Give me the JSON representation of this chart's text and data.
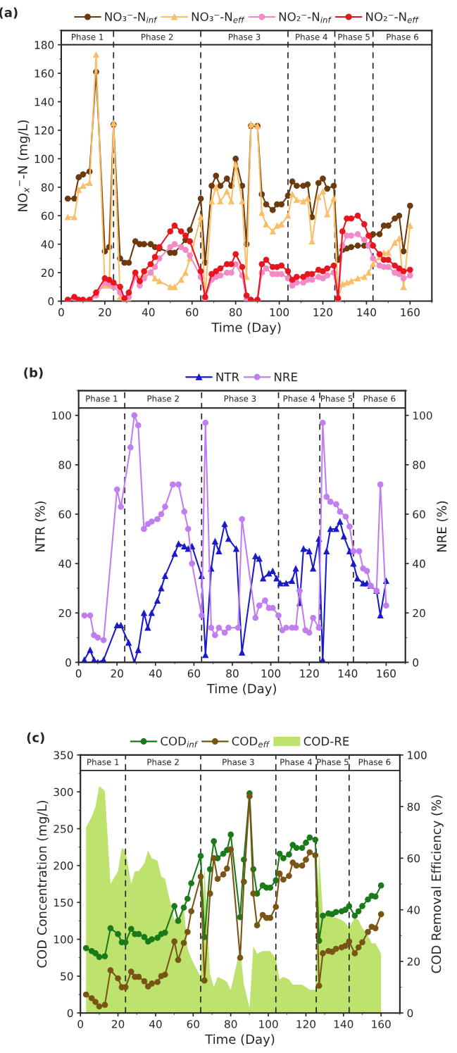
{
  "chart_data": [
    {
      "type": "line",
      "xlabel": "Time (Day)",
      "ylabel": "NO$_{x}$$^{−}$-N (mg/L)",
      "annotations": [
        "(a)",
        "Phase 1",
        "Phase 2",
        "Phase 3",
        "Phase 4",
        "Phase 5",
        "Phase 6"
      ],
      "xlim": [
        0,
        170
      ],
      "ylim": [
        0,
        190
      ],
      "xticks": [
        0,
        20,
        40,
        60,
        80,
        100,
        120,
        140,
        160
      ],
      "yticks": [
        0,
        20,
        40,
        60,
        80,
        100,
        120,
        140,
        160,
        180
      ],
      "legend": "top",
      "ref_lines": [
        {
          "axis": "y",
          "value": 180,
          "line_style": "solid"
        },
        {
          "axis": "x",
          "value": 24,
          "line_style": "dashed"
        },
        {
          "axis": "x",
          "value": 64,
          "line_style": "dashed"
        },
        {
          "axis": "x",
          "value": 104,
          "line_style": "dashed"
        },
        {
          "axis": "x",
          "value": 125.5,
          "line_style": "dashed"
        },
        {
          "axis": "x",
          "value": 143,
          "line_style": "dashed"
        }
      ],
      "series": [
        {
          "name": "NO₃⁻-N$_{inf}$",
          "color": "#6b3a0e",
          "marker": "circle",
          "x": [
            3,
            6,
            8,
            10,
            13,
            16,
            20,
            22,
            24,
            27,
            29,
            31,
            34,
            36,
            38,
            41,
            43,
            45,
            50,
            52,
            57,
            59,
            64,
            66,
            69,
            71,
            73,
            76,
            78,
            80,
            83,
            85,
            87,
            90,
            92,
            94,
            97,
            99,
            101,
            104,
            106,
            108,
            111,
            113,
            115,
            118,
            120,
            122,
            125,
            127,
            129,
            131,
            133,
            136,
            139,
            141,
            143,
            146,
            148,
            150,
            153,
            155,
            157,
            160
          ],
          "values": [
            72,
            72,
            87,
            89,
            91,
            161,
            35,
            38,
            124,
            30,
            27,
            27,
            42,
            40,
            40,
            40,
            38,
            37,
            34,
            34,
            43,
            50,
            72,
            27,
            81,
            88,
            81,
            86,
            81,
            100,
            81,
            40,
            123,
            123,
            75,
            68,
            64,
            68,
            68,
            74,
            84,
            81,
            81,
            82,
            59,
            83,
            86,
            79,
            81,
            29,
            36,
            37,
            38,
            39,
            39,
            39,
            47,
            47,
            53,
            53,
            58,
            60,
            35,
            67
          ]
        },
        {
          "name": "NO₃⁻-N$_{eff}$",
          "color": "#f9bf68",
          "marker": "triangle",
          "x": [
            3,
            6,
            8,
            10,
            13,
            16,
            20,
            22,
            24,
            27,
            29,
            31,
            34,
            36,
            38,
            41,
            43,
            45,
            50,
            52,
            55,
            57,
            59,
            64,
            66,
            69,
            71,
            73,
            76,
            78,
            80,
            83,
            85,
            87,
            90,
            92,
            94,
            97,
            99,
            101,
            104,
            106,
            108,
            111,
            113,
            115,
            118,
            120,
            122,
            125,
            127,
            129,
            131,
            133,
            136,
            139,
            141,
            143,
            146,
            148,
            150,
            153,
            155,
            157,
            160
          ],
          "values": [
            59,
            59,
            78,
            81,
            83,
            173,
            11,
            11,
            125,
            3,
            1,
            1,
            20,
            16,
            19,
            21,
            16,
            14,
            10,
            10,
            15,
            20,
            30,
            59,
            3,
            70,
            80,
            70,
            77,
            70,
            96,
            70,
            17,
            124,
            123,
            62,
            54,
            49,
            53,
            54,
            60,
            75,
            71,
            70,
            72,
            42,
            73,
            77,
            61,
            72,
            2,
            12,
            13,
            14,
            16,
            17,
            20,
            26,
            31,
            34,
            34,
            41,
            44,
            10,
            53
          ]
        },
        {
          "name": "NO₂⁻-N$_{inf}$",
          "color": "#f28ac6",
          "marker": "circle",
          "x": [
            3,
            6,
            8,
            10,
            13,
            16,
            20,
            22,
            24,
            27,
            29,
            31,
            34,
            36,
            38,
            41,
            43,
            45,
            50,
            52,
            55,
            57,
            59,
            64,
            66,
            69,
            71,
            73,
            76,
            78,
            80,
            83,
            85,
            87,
            90,
            92,
            94,
            97,
            99,
            101,
            104,
            106,
            108,
            111,
            113,
            115,
            118,
            120,
            122,
            125,
            127,
            129,
            131,
            133,
            136,
            139,
            141,
            143,
            146,
            148,
            150,
            153,
            155,
            157,
            160
          ],
          "values": [
            0,
            2,
            0,
            0,
            0,
            4,
            13,
            12,
            10,
            6,
            0,
            3,
            17,
            11,
            16,
            20,
            24,
            30,
            38,
            40,
            38,
            36,
            32,
            17,
            2,
            15,
            17,
            18,
            20,
            20,
            26,
            18,
            1,
            0,
            0,
            20,
            23,
            19,
            19,
            19,
            16,
            11,
            13,
            13,
            15,
            15,
            17,
            16,
            18,
            20,
            0,
            39,
            46,
            46,
            47,
            43,
            39,
            30,
            25,
            24,
            24,
            20,
            19,
            16,
            18
          ]
        },
        {
          "name": "NO₂⁻-N$_{eff}$",
          "color": "#e8141e",
          "marker": "circle",
          "x": [
            3,
            6,
            8,
            10,
            13,
            16,
            20,
            22,
            24,
            27,
            29,
            31,
            34,
            36,
            38,
            41,
            43,
            45,
            50,
            52,
            55,
            57,
            59,
            64,
            66,
            69,
            71,
            73,
            76,
            78,
            80,
            83,
            85,
            87,
            90,
            92,
            94,
            97,
            99,
            101,
            104,
            106,
            108,
            111,
            113,
            115,
            118,
            120,
            122,
            125,
            127,
            129,
            131,
            133,
            136,
            139,
            141,
            143,
            146,
            148,
            150,
            153,
            155,
            157,
            160
          ],
          "values": [
            1,
            3,
            1,
            1,
            1,
            6,
            16,
            15,
            13,
            10,
            2,
            6,
            20,
            14,
            21,
            26,
            31,
            38,
            49,
            53,
            49,
            46,
            42,
            21,
            3,
            19,
            21,
            23,
            26,
            26,
            33,
            24,
            4,
            1,
            1,
            26,
            29,
            24,
            24,
            25,
            21,
            15,
            17,
            17,
            19,
            19,
            22,
            21,
            23,
            25,
            2,
            49,
            58,
            58,
            60,
            54,
            46,
            39,
            33,
            29,
            29,
            25,
            23,
            21,
            22
          ]
        }
      ]
    },
    {
      "type": "line",
      "xlabel": "Time (Day)",
      "ylabel": "NTR (%)",
      "y2label": "NRE (%)",
      "annotations": [
        "(b)",
        "Phase 1",
        "Phase 2",
        "Phase 3",
        "Phase 4",
        "Phase 5",
        "Phase 6"
      ],
      "xlim": [
        0,
        170
      ],
      "ylim": [
        0,
        110
      ],
      "y2lim": [
        0,
        110
      ],
      "xticks": [
        0,
        20,
        40,
        60,
        80,
        100,
        120,
        140,
        160
      ],
      "yticks": [
        0,
        20,
        40,
        60,
        80,
        100
      ],
      "y2ticks": [
        0,
        20,
        40,
        60,
        80,
        100
      ],
      "legend": "top",
      "ref_lines": [
        {
          "axis": "y",
          "value": 103,
          "line_style": "solid"
        },
        {
          "axis": "x",
          "value": 24,
          "line_style": "dashed"
        },
        {
          "axis": "x",
          "value": 64,
          "line_style": "dashed"
        },
        {
          "axis": "x",
          "value": 104,
          "line_style": "dashed"
        },
        {
          "axis": "x",
          "value": 125.5,
          "line_style": "dashed"
        },
        {
          "axis": "x",
          "value": 143,
          "line_style": "dashed"
        }
      ],
      "series": [
        {
          "name": "NTR",
          "color": "#1a1acb",
          "marker": "triangle",
          "x": [
            3,
            6,
            8,
            10,
            13,
            20,
            22,
            26,
            29,
            31,
            34,
            36,
            38,
            41,
            43,
            45,
            50,
            52,
            55,
            57,
            59,
            64,
            66,
            69,
            71,
            73,
            76,
            78,
            82,
            85,
            92,
            94,
            96,
            99,
            101,
            103,
            105,
            108,
            111,
            113,
            115,
            117,
            120,
            122,
            125,
            127,
            129,
            131,
            134,
            136,
            138,
            141,
            143,
            145,
            148,
            150,
            152,
            155,
            157,
            160
          ],
          "values": [
            1,
            5,
            1,
            0,
            1,
            15,
            15,
            8,
            0,
            5,
            20,
            14,
            20,
            25,
            30,
            35,
            44,
            48,
            47,
            46,
            47,
            35,
            3,
            38,
            49,
            45,
            56,
            50,
            46,
            4,
            43,
            42,
            34,
            36,
            37,
            34,
            32,
            32,
            33,
            38,
            24,
            46,
            45,
            38,
            50,
            1,
            45,
            54,
            54,
            57,
            51,
            45,
            40,
            34,
            32,
            32,
            31,
            29,
            19,
            33
          ]
        },
        {
          "name": "NRE",
          "color": "#c07ef0",
          "marker": "circle",
          "axis": "y2",
          "x": [
            3,
            6,
            8,
            10,
            13,
            20,
            22,
            27,
            29,
            31,
            34,
            36,
            38,
            41,
            43,
            45,
            49,
            52,
            55,
            57,
            59,
            64,
            66,
            69,
            71,
            73,
            76,
            78,
            83,
            85,
            92,
            94,
            97,
            99,
            101,
            104,
            106,
            108,
            111,
            113,
            115,
            118,
            120,
            122,
            125,
            127,
            129,
            131,
            134,
            136,
            139,
            141,
            143,
            146,
            148,
            150,
            152,
            155,
            157,
            160
          ],
          "values": [
            19,
            19,
            11,
            10,
            9,
            70,
            63,
            87,
            100,
            96,
            54,
            56,
            57,
            58,
            60,
            63,
            72,
            72,
            61,
            54,
            40,
            19,
            97,
            14,
            11,
            14,
            12,
            14,
            14,
            58,
            18,
            23,
            25,
            22,
            22,
            19,
            13,
            14,
            14,
            14,
            29,
            13,
            12,
            18,
            14,
            97,
            67,
            65,
            64,
            61,
            59,
            55,
            45,
            45,
            38,
            37,
            31,
            29,
            72,
            23
          ]
        }
      ]
    },
    {
      "type": "line",
      "xlabel": "Time (Day)",
      "ylabel": "COD Concentration (mg/L)",
      "y2label": "COD Removal Efficiency (%)",
      "annotations": [
        "(c)",
        "Phase 1",
        "Phase 2",
        "Phase 3",
        "Phase 4",
        "Phase 5",
        "Phase 6"
      ],
      "xlim": [
        0,
        170
      ],
      "ylim": [
        0,
        350
      ],
      "y2lim": [
        0,
        100
      ],
      "xticks": [
        0,
        20,
        40,
        60,
        80,
        100,
        120,
        140,
        160
      ],
      "yticks": [
        0,
        50,
        100,
        150,
        200,
        250,
        300,
        350
      ],
      "y2ticks": [
        0,
        20,
        40,
        60,
        80,
        100
      ],
      "legend": "top",
      "ref_lines": [
        {
          "axis": "y",
          "value": 329,
          "line_style": "solid"
        },
        {
          "axis": "x",
          "value": 24,
          "line_style": "dashed"
        },
        {
          "axis": "x",
          "value": 64,
          "line_style": "dashed"
        },
        {
          "axis": "x",
          "value": 104,
          "line_style": "dashed"
        },
        {
          "axis": "x",
          "value": 125.5,
          "line_style": "dashed"
        },
        {
          "axis": "x",
          "value": 143,
          "line_style": "dashed"
        }
      ],
      "series": [
        {
          "name": "COD$_{inf}$",
          "color": "#1a7a1a",
          "marker": "circle",
          "x": [
            3,
            6,
            8,
            10,
            13,
            16,
            20,
            22,
            24,
            27,
            29,
            31,
            34,
            36,
            38,
            41,
            43,
            45,
            50,
            52,
            55,
            57,
            59,
            64,
            66,
            69,
            71,
            73,
            76,
            78,
            80,
            85,
            87,
            90,
            92,
            94,
            97,
            99,
            101,
            104,
            106,
            108,
            111,
            113,
            115,
            118,
            120,
            122,
            125,
            127,
            129,
            132,
            134,
            136,
            139,
            141,
            143,
            146,
            148,
            150,
            153,
            155,
            157,
            160
          ],
          "values": [
            88,
            84,
            81,
            76,
            77,
            115,
            107,
            96,
            96,
            114,
            107,
            107,
            103,
            97,
            100,
            102,
            107,
            109,
            145,
            125,
            143,
            155,
            176,
            213,
            103,
            195,
            233,
            210,
            216,
            221,
            242,
            130,
            208,
            298,
            195,
            162,
            173,
            170,
            170,
            180,
            216,
            210,
            215,
            228,
            224,
            224,
            231,
            238,
            235,
            98,
            132,
            135,
            134,
            137,
            138,
            140,
            145,
            132,
            138,
            145,
            154,
            159,
            158,
            173
          ]
        },
        {
          "name": "COD$_{eff}$",
          "color": "#7a5414",
          "marker": "circle",
          "x": [
            3,
            6,
            8,
            10,
            13,
            16,
            20,
            22,
            24,
            27,
            29,
            31,
            34,
            36,
            38,
            41,
            43,
            45,
            50,
            52,
            55,
            57,
            59,
            64,
            66,
            69,
            71,
            73,
            76,
            78,
            80,
            85,
            87,
            90,
            92,
            94,
            97,
            99,
            101,
            104,
            106,
            108,
            111,
            113,
            115,
            118,
            120,
            122,
            125,
            127,
            129,
            132,
            134,
            136,
            139,
            141,
            143,
            146,
            148,
            150,
            153,
            155,
            157,
            160
          ],
          "values": [
            25,
            20,
            15,
            9,
            11,
            58,
            47,
            35,
            35,
            56,
            49,
            49,
            43,
            36,
            40,
            42,
            50,
            52,
            97,
            72,
            95,
            110,
            138,
            185,
            44,
            162,
            210,
            182,
            188,
            196,
            222,
            75,
            178,
            294,
            162,
            119,
            133,
            129,
            129,
            144,
            189,
            181,
            186,
            204,
            200,
            200,
            208,
            218,
            214,
            37,
            81,
            84,
            83,
            87,
            89,
            91,
            97,
            81,
            89,
            96,
            110,
            117,
            115,
            134
          ]
        },
        {
          "name": "COD-RE",
          "type": "area",
          "axis": "y2",
          "color": "#bde36e",
          "x": [
            3,
            6,
            8,
            10,
            13,
            16,
            20,
            22,
            24,
            27,
            29,
            31,
            34,
            36,
            38,
            41,
            43,
            45,
            50,
            52,
            55,
            57,
            59,
            64,
            66,
            69,
            71,
            73,
            76,
            78,
            80,
            85,
            87,
            90,
            92,
            94,
            97,
            99,
            101,
            104,
            106,
            108,
            111,
            113,
            115,
            118,
            120,
            122,
            125,
            127,
            129,
            132,
            134,
            136,
            139,
            141,
            143,
            146,
            148,
            150,
            153,
            155,
            157,
            160
          ],
          "values": [
            72,
            76,
            80,
            88,
            86,
            50,
            55,
            64,
            63,
            50,
            55,
            55,
            58,
            63,
            60,
            59,
            53,
            52,
            36,
            37,
            41,
            25,
            21,
            14,
            57,
            15,
            10,
            14,
            13,
            12,
            9,
            25,
            11,
            2,
            26,
            23,
            24,
            24,
            24,
            21,
            13,
            14,
            13,
            11,
            11,
            11,
            10,
            9,
            9,
            62,
            39,
            38,
            37,
            37,
            36,
            35,
            33,
            37,
            36,
            33,
            30,
            27,
            27,
            23
          ]
        }
      ]
    }
  ]
}
